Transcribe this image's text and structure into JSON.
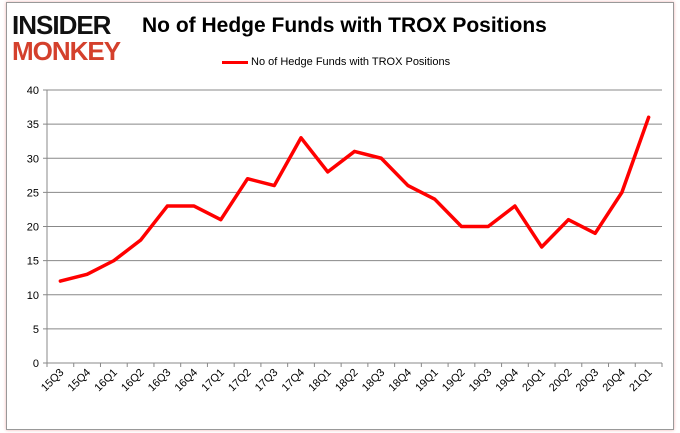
{
  "logo": {
    "line1": "INSIDER",
    "line2": "MONKEY"
  },
  "chart_data": {
    "type": "line",
    "title": "No of Hedge Funds with TROX Positions",
    "categories": [
      "15Q3",
      "15Q4",
      "16Q1",
      "16Q2",
      "16Q3",
      "16Q4",
      "17Q1",
      "17Q2",
      "17Q3",
      "17Q4",
      "18Q1",
      "18Q2",
      "18Q3",
      "18Q4",
      "19Q1",
      "19Q2",
      "19Q3",
      "19Q4",
      "20Q1",
      "20Q2",
      "20Q3",
      "20Q4",
      "21Q1"
    ],
    "series": [
      {
        "name": "No of Hedge Funds with TROX Positions",
        "color": "#ff0000",
        "values": [
          12,
          13,
          15,
          18,
          23,
          23,
          21,
          27,
          26,
          33,
          28,
          31,
          30,
          26,
          24,
          20,
          20,
          23,
          17,
          21,
          19,
          25,
          36
        ]
      }
    ],
    "ylim": [
      0,
      40
    ],
    "yticks": [
      0,
      5,
      10,
      15,
      20,
      25,
      30,
      35,
      40
    ],
    "grid": true,
    "legend": "top-center"
  }
}
